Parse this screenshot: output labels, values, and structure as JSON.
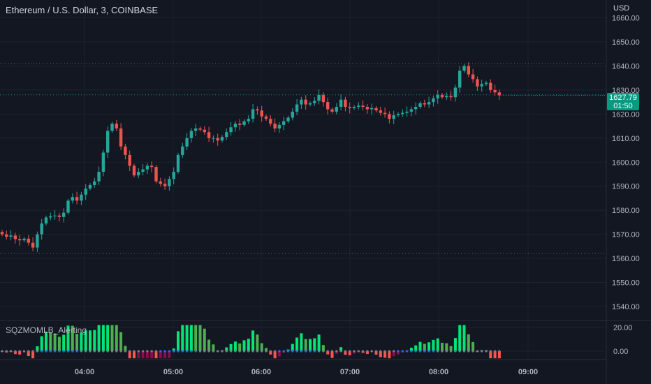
{
  "header": {
    "title": "Ethereum / U.S. Dollar, 3, COINBASE",
    "currency": "USD"
  },
  "indicator": {
    "name": "SQZMOMLB_Alerting"
  },
  "last_price": {
    "value": "1627.79",
    "countdown": "01:50"
  },
  "colors": {
    "background": "#131722",
    "up": "#26a69a",
    "down": "#ef5350",
    "hist_strong_up": "#00e676",
    "hist_weak_up": "#4caf50",
    "hist_strong_down": "#ff5252",
    "hist_weak_down": "#880e4f",
    "squeeze_on": "#787b86",
    "squeeze_off": "#2962ff"
  },
  "chart_data": [
    {
      "type": "candlestick",
      "title": "Ethereum / U.S. Dollar, 3, COINBASE",
      "y_axis_ticks": [
        "1660.00",
        "1650.00",
        "1640.00",
        "1630.00",
        "1620.00",
        "1610.00",
        "1600.00",
        "1590.00",
        "1580.00",
        "1570.00",
        "1560.00",
        "1550.00",
        "1540.00"
      ],
      "x_axis_ticks": [
        "04:00",
        "05:00",
        "06:00",
        "07:00",
        "08:00",
        "09:00"
      ],
      "ylim": [
        1535,
        1662
      ],
      "reference_lines": [
        1641,
        1628,
        1562
      ],
      "candles_close": [
        1570.0,
        1569.0,
        1569.5,
        1568.0,
        1567.5,
        1568.2,
        1566.5,
        1564.5,
        1570.0,
        1574.5,
        1577.0,
        1577.5,
        1577.8,
        1577.2,
        1579.0,
        1584.0,
        1585.5,
        1584.0,
        1586.5,
        1589.0,
        1590.5,
        1592.0,
        1596.0,
        1604.0,
        1613.0,
        1616.0,
        1614.0,
        1606.5,
        1603.0,
        1598.5,
        1594.5,
        1596.0,
        1597.0,
        1598.5,
        1598.0,
        1592.0,
        1591.0,
        1590.0,
        1593.0,
        1596.0,
        1603.0,
        1606.5,
        1610.0,
        1613.0,
        1614.0,
        1613.5,
        1612.5,
        1610.0,
        1610.0,
        1609.0,
        1610.5,
        1612.5,
        1614.5,
        1616.0,
        1615.5,
        1617.0,
        1618.0,
        1622.0,
        1621.5,
        1619.0,
        1618.0,
        1616.0,
        1614.0,
        1615.5,
        1617.0,
        1618.5,
        1621.0,
        1624.0,
        1626.0,
        1624.0,
        1624.5,
        1625.5,
        1628.0,
        1625.0,
        1622.0,
        1621.0,
        1623.0,
        1626.0,
        1623.0,
        1622.5,
        1623.0,
        1623.5,
        1623.0,
        1622.0,
        1622.5,
        1621.5,
        1620.5,
        1620.0,
        1618.0,
        1619.5,
        1620.0,
        1620.5,
        1621.0,
        1622.0,
        1623.0,
        1624.5,
        1624.0,
        1625.0,
        1626.5,
        1628.0,
        1627.0,
        1627.5,
        1627.0,
        1631.0,
        1638.0,
        1640.0,
        1636.5,
        1634.5,
        1631.5,
        1632.5,
        1633.0,
        1630.0,
        1629.0,
        1627.8
      ],
      "last_value": 1627.79
    },
    {
      "type": "bar",
      "title": "SQZMOMLB_Alerting",
      "y_axis_ticks": [
        "20.00",
        "0.00"
      ],
      "ylim": [
        -6,
        22
      ]
    }
  ]
}
